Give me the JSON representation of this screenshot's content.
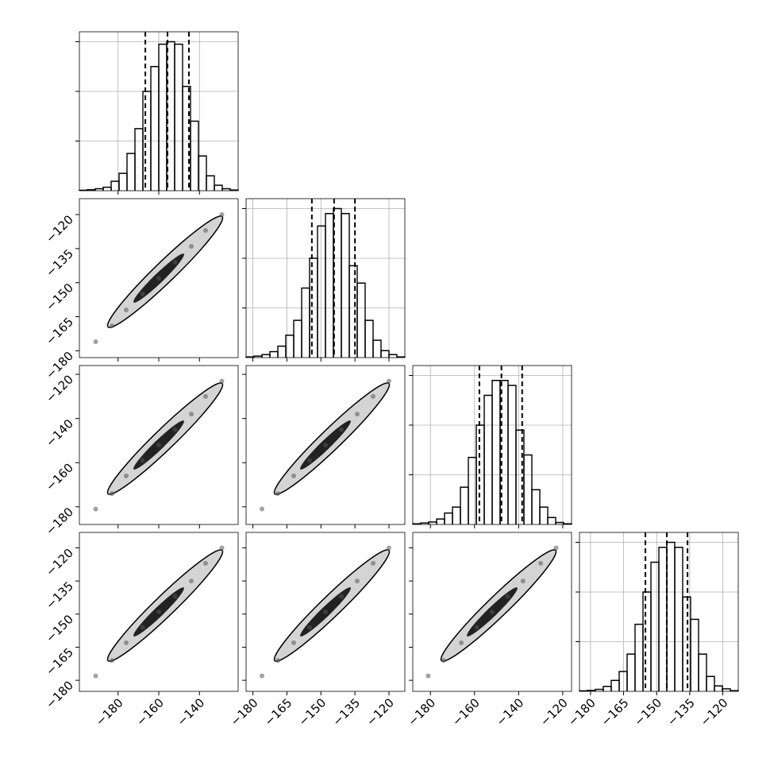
{
  "chart_data": {
    "type": "corner",
    "grid": true,
    "hist_ylim": [
      0,
      640
    ],
    "hist_yticks": [
      200,
      400,
      600
    ],
    "variables": [
      {
        "lim": [
          -199,
          -121
        ],
        "ticks": [
          {
            "value": -180,
            "label": "−180"
          },
          {
            "value": -160,
            "label": "−160"
          },
          {
            "value": -140,
            "label": "−140"
          }
        ],
        "bins": [
          -199,
          -195.1,
          -191.2,
          -187.3,
          -183.4,
          -179.5,
          -175.6,
          -171.7,
          -167.8,
          -163.9,
          -160,
          -156.1,
          -152.2,
          -148.3,
          -144.4,
          -140.5,
          -136.6,
          -132.7,
          -128.8,
          -124.9,
          -121
        ],
        "counts": [
          2,
          4,
          8,
          14,
          38,
          70,
          150,
          250,
          400,
          500,
          590,
          600,
          590,
          420,
          280,
          140,
          60,
          22,
          8,
          3
        ],
        "quantiles": [
          -166.6,
          -155.7,
          -145.2
        ]
      },
      {
        "lim": [
          -183,
          -113
        ],
        "ticks": [
          {
            "value": -180,
            "label": "−180"
          },
          {
            "value": -165,
            "label": "−165"
          },
          {
            "value": -150,
            "label": "−150"
          },
          {
            "value": -135,
            "label": "−135"
          },
          {
            "value": -120,
            "label": "−120"
          }
        ],
        "bins": [
          -183,
          -179.5,
          -176,
          -172.5,
          -169,
          -165.5,
          -162,
          -158.5,
          -155,
          -151.5,
          -148,
          -144.5,
          -141,
          -137.5,
          -134,
          -130.5,
          -127,
          -123.5,
          -120,
          -116.5,
          -113
        ],
        "counts": [
          3,
          6,
          12,
          24,
          46,
          90,
          150,
          280,
          400,
          530,
          580,
          600,
          580,
          370,
          300,
          150,
          70,
          28,
          12,
          3
        ],
        "quantiles": [
          -154,
          -144.2,
          -135
        ]
      },
      {
        "lim": [
          -188,
          -116
        ],
        "ticks": [
          {
            "value": -180,
            "label": "−180"
          },
          {
            "value": -160,
            "label": "−160"
          },
          {
            "value": -140,
            "label": "−140"
          },
          {
            "value": -120,
            "label": "−120"
          }
        ],
        "bins": [
          -188,
          -184.4,
          -180.8,
          -177.2,
          -173.6,
          -170,
          -166.4,
          -162.8,
          -159.2,
          -155.6,
          -152,
          -148.4,
          -144.8,
          -141.2,
          -137.6,
          -134,
          -130.4,
          -126.8,
          -123.2,
          -119.6,
          -116
        ],
        "counts": [
          3,
          6,
          10,
          22,
          46,
          70,
          150,
          270,
          400,
          520,
          580,
          580,
          560,
          380,
          280,
          140,
          70,
          28,
          8,
          3
        ],
        "quantiles": [
          -157.8,
          -147.8,
          -138.4
        ]
      },
      {
        "lim": [
          -185,
          -113
        ],
        "ticks": [
          {
            "value": -180,
            "label": "−180"
          },
          {
            "value": -165,
            "label": "−165"
          },
          {
            "value": -150,
            "label": "−150"
          },
          {
            "value": -135,
            "label": "−135"
          },
          {
            "value": -120,
            "label": "−120"
          }
        ],
        "bins": [
          -185,
          -181.4,
          -177.8,
          -174.2,
          -170.6,
          -167,
          -163.4,
          -159.8,
          -156.2,
          -152.6,
          -149,
          -145.4,
          -141.8,
          -138.2,
          -134.6,
          -131,
          -127.4,
          -123.8,
          -120.2,
          -116.6,
          -113
        ],
        "counts": [
          2,
          4,
          8,
          20,
          44,
          80,
          150,
          270,
          400,
          520,
          580,
          600,
          580,
          380,
          290,
          150,
          60,
          22,
          10,
          3
        ],
        "quantiles": [
          -155.1,
          -145.4,
          -136
        ]
      }
    ],
    "pairs": [
      {
        "x_var": 0,
        "y_var": 1,
        "x": [
          -191,
          -183,
          -176,
          -168,
          -160,
          -152,
          -144,
          -137,
          -129
        ],
        "y": [
          -176,
          -169,
          -162,
          -155,
          -148,
          -141,
          -134,
          -127,
          -120
        ]
      },
      {
        "x_var": 0,
        "y_var": 2,
        "x": [
          -191,
          -183,
          -176,
          -168,
          -160,
          -152,
          -144,
          -137,
          -129
        ],
        "y": [
          -181,
          -174,
          -166,
          -159,
          -152,
          -145,
          -138,
          -130,
          -123
        ]
      },
      {
        "x_var": 1,
        "y_var": 2,
        "x": [
          -176,
          -169,
          -162,
          -155,
          -148,
          -141,
          -134,
          -127,
          -120
        ],
        "y": [
          -181,
          -174,
          -166,
          -159,
          -152,
          -145,
          -138,
          -130,
          -123
        ]
      },
      {
        "x_var": 0,
        "y_var": 3,
        "x": [
          -191,
          -183,
          -176,
          -168,
          -160,
          -152,
          -144,
          -137,
          -129
        ],
        "y": [
          -178,
          -171,
          -163,
          -156,
          -149,
          -142,
          -135,
          -127,
          -120
        ]
      },
      {
        "x_var": 1,
        "y_var": 3,
        "x": [
          -176,
          -169,
          -162,
          -155,
          -148,
          -141,
          -134,
          -127,
          -120
        ],
        "y": [
          -178,
          -171,
          -163,
          -156,
          -149,
          -142,
          -135,
          -127,
          -120
        ]
      },
      {
        "x_var": 2,
        "y_var": 3,
        "x": [
          -181,
          -174,
          -166,
          -159,
          -152,
          -145,
          -138,
          -130,
          -123
        ],
        "y": [
          -178,
          -171,
          -163,
          -156,
          -149,
          -142,
          -135,
          -127,
          -120
        ]
      }
    ]
  }
}
